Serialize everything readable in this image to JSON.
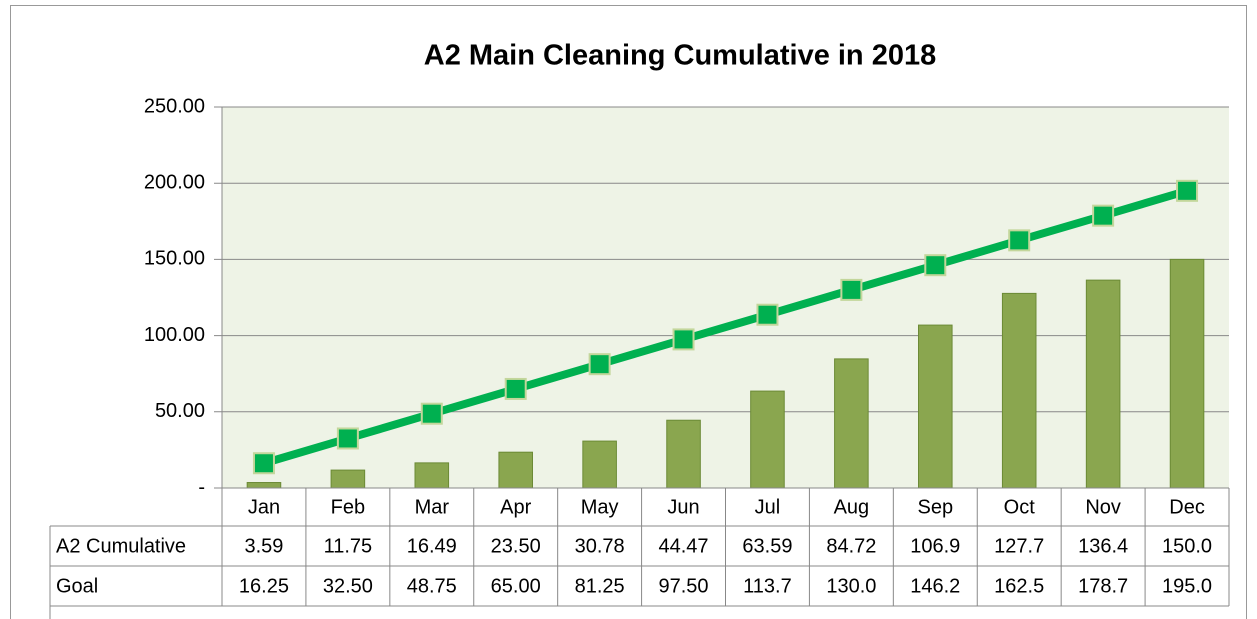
{
  "chart_data": {
    "type": "bar_line",
    "title": "A2 Main Cleaning Cumulative in 2018",
    "categories": [
      "Jan",
      "Feb",
      "Mar",
      "Apr",
      "May",
      "Jun",
      "Jul",
      "Aug",
      "Sep",
      "Oct",
      "Nov",
      "Dec"
    ],
    "series": [
      {
        "name": "A2 Cumulative",
        "type": "bar",
        "color": "#8aa64f",
        "values": [
          3.59,
          11.75,
          16.49,
          23.5,
          30.78,
          44.47,
          63.59,
          84.72,
          106.9,
          127.7,
          136.4,
          150.0
        ],
        "value_labels": [
          "3.59",
          "11.75",
          "16.49",
          "23.50",
          "30.78",
          "44.47",
          "63.59",
          "84.72",
          "106.9",
          "127.7",
          "136.4",
          "150.0"
        ]
      },
      {
        "name": "Goal",
        "type": "line",
        "color": "#00b050",
        "values": [
          16.25,
          32.5,
          48.75,
          65.0,
          81.25,
          97.5,
          113.7,
          130.0,
          146.2,
          162.5,
          178.7,
          195.0
        ],
        "value_labels": [
          "16.25",
          "32.50",
          "48.75",
          "65.00",
          "81.25",
          "97.50",
          "113.7",
          "130.0",
          "146.2",
          "162.5",
          "178.7",
          "195.0"
        ]
      }
    ],
    "ylim": [
      0,
      250
    ],
    "yticks": [
      {
        "value": 0,
        "label": "-"
      },
      {
        "value": 50,
        "label": "50.00"
      },
      {
        "value": 100,
        "label": "100.00"
      },
      {
        "value": 150,
        "label": "150.00"
      },
      {
        "value": 200,
        "label": "200.00"
      },
      {
        "value": 250,
        "label": "250.00"
      }
    ],
    "grid": true
  }
}
